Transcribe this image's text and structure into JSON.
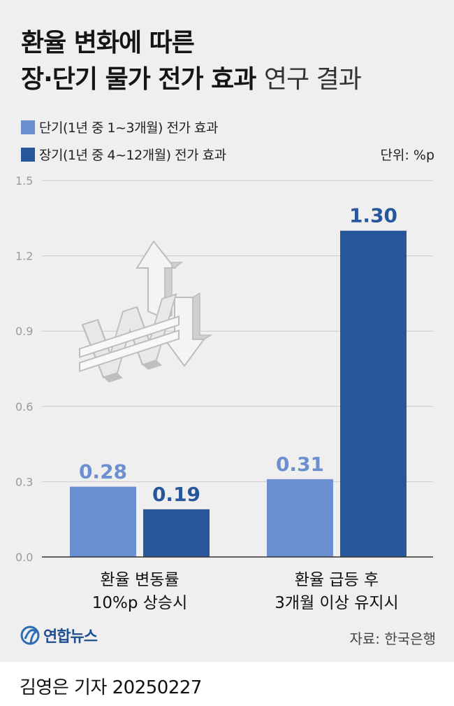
{
  "title_line1": "환율 변화에 따른",
  "title_line2_bold": "장·단기 물가 전가 효과",
  "title_line2_light": "연구 결과",
  "unit": "단위: %p",
  "source": "자료: 한국은행",
  "logo_text": "연합뉴스",
  "reporter": "김영은 기자  20250227",
  "colors": {
    "short_term": "#6b8fd0",
    "long_term": "#27569b",
    "grid": "#c9c9c9",
    "axis_text": "#9a9a9a"
  },
  "chart_data": {
    "type": "bar",
    "categories": [
      [
        "환율 변동률",
        "10%p 상승시"
      ],
      [
        "환율 급등 후",
        "3개월 이상 유지시"
      ]
    ],
    "series": [
      {
        "name": "단기(1년 중 1~3개월) 전가 효과",
        "values": [
          0.28,
          0.31
        ],
        "labels": [
          "0.28",
          "0.31"
        ]
      },
      {
        "name": "장기(1년 중 4~12개월) 전가 효과",
        "values": [
          0.19,
          1.3
        ],
        "labels": [
          "0.19",
          "1.30"
        ]
      }
    ],
    "ylim": [
      0,
      1.5
    ],
    "yticks": [
      0.0,
      0.3,
      0.6,
      0.9,
      1.2,
      1.5
    ],
    "ytick_labels": [
      "0.0",
      "0.3",
      "0.6",
      "0.9",
      "1.2",
      "1.5"
    ],
    "grid": true,
    "legend_position": "top-left"
  }
}
